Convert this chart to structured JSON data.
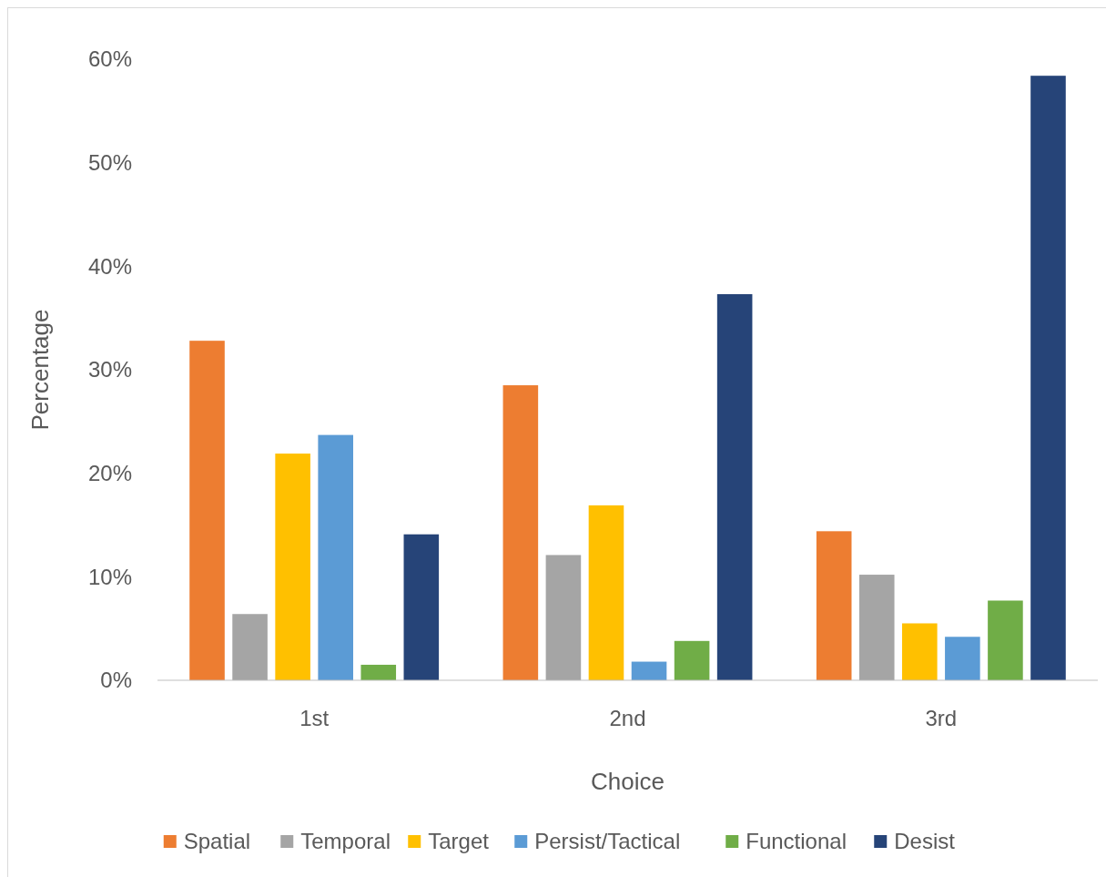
{
  "chart_data": {
    "type": "bar",
    "xlabel": "Choice",
    "ylabel": "Percentage",
    "categories": [
      "1st",
      "2nd",
      "3rd"
    ],
    "series": [
      {
        "name": "Spatial",
        "color": "#ed7d31",
        "values": [
          32.8,
          28.5,
          14.4
        ]
      },
      {
        "name": "Temporal",
        "color": "#a5a5a5",
        "values": [
          6.4,
          12.1,
          10.2
        ]
      },
      {
        "name": "Target",
        "color": "#ffc000",
        "values": [
          21.9,
          16.9,
          5.5
        ]
      },
      {
        "name": "Persist/Tactical",
        "color": "#5b9bd5",
        "values": [
          23.7,
          1.8,
          4.2
        ]
      },
      {
        "name": "Functional",
        "color": "#70ad47",
        "values": [
          1.5,
          3.8,
          7.7
        ]
      },
      {
        "name": "Desist",
        "color": "#264478",
        "values": [
          14.1,
          37.3,
          58.4
        ]
      }
    ],
    "ylim": [
      0,
      60
    ],
    "yticks": [
      {
        "value": 0,
        "label": "0%"
      },
      {
        "value": 10,
        "label": "10%"
      },
      {
        "value": 20,
        "label": "20%"
      },
      {
        "value": 30,
        "label": "30%"
      },
      {
        "value": 40,
        "label": "40%"
      },
      {
        "value": 50,
        "label": "50%"
      },
      {
        "value": 60,
        "label": "60%"
      }
    ],
    "grid": false,
    "legend": "bottom"
  }
}
